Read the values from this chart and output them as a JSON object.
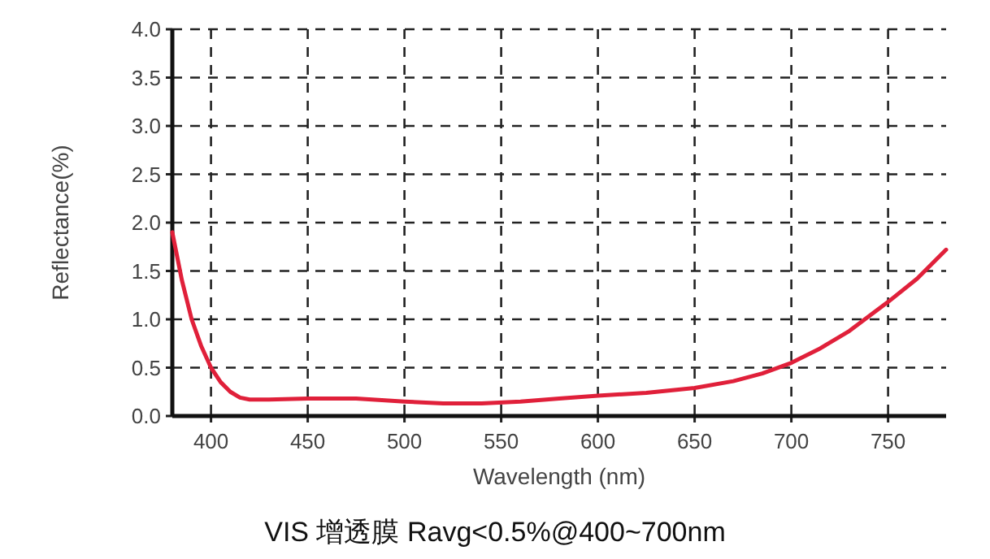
{
  "chart_data": {
    "type": "line",
    "xlabel": "Wavelength (nm)",
    "ylabel": "Reflectance(%)",
    "annotations": [
      "VIS 增透膜 Ravg<0.5%@400~700nm"
    ],
    "xlim": [
      380,
      780
    ],
    "ylim": [
      0,
      4
    ],
    "xticks": [
      400,
      450,
      500,
      550,
      600,
      650,
      700,
      750
    ],
    "yticks": [
      {
        "value": 0,
        "label": "0.0"
      },
      {
        "value": 0.5,
        "label": "0.5"
      },
      {
        "value": 1,
        "label": "1.0"
      },
      {
        "value": 1.5,
        "label": "1.5"
      },
      {
        "value": 2,
        "label": "2.0"
      },
      {
        "value": 2.5,
        "label": "2.5"
      },
      {
        "value": 3,
        "label": "3.0"
      },
      {
        "value": 3.5,
        "label": "3.5"
      },
      {
        "value": 4,
        "label": "4.0"
      }
    ],
    "grid": true,
    "marker": "none",
    "line_style": "solid",
    "series": [
      {
        "color": "#e0203a",
        "x": [
          380,
          385,
          390,
          395,
          400,
          405,
          410,
          415,
          420,
          430,
          450,
          475,
          500,
          520,
          540,
          560,
          580,
          600,
          625,
          650,
          670,
          685,
          700,
          715,
          730,
          750,
          765,
          780
        ],
        "values": [
          1.9,
          1.4,
          1.0,
          0.72,
          0.5,
          0.35,
          0.25,
          0.19,
          0.17,
          0.17,
          0.18,
          0.18,
          0.15,
          0.13,
          0.13,
          0.15,
          0.18,
          0.21,
          0.24,
          0.29,
          0.36,
          0.44,
          0.55,
          0.7,
          0.88,
          1.18,
          1.42,
          1.72
        ]
      }
    ]
  }
}
